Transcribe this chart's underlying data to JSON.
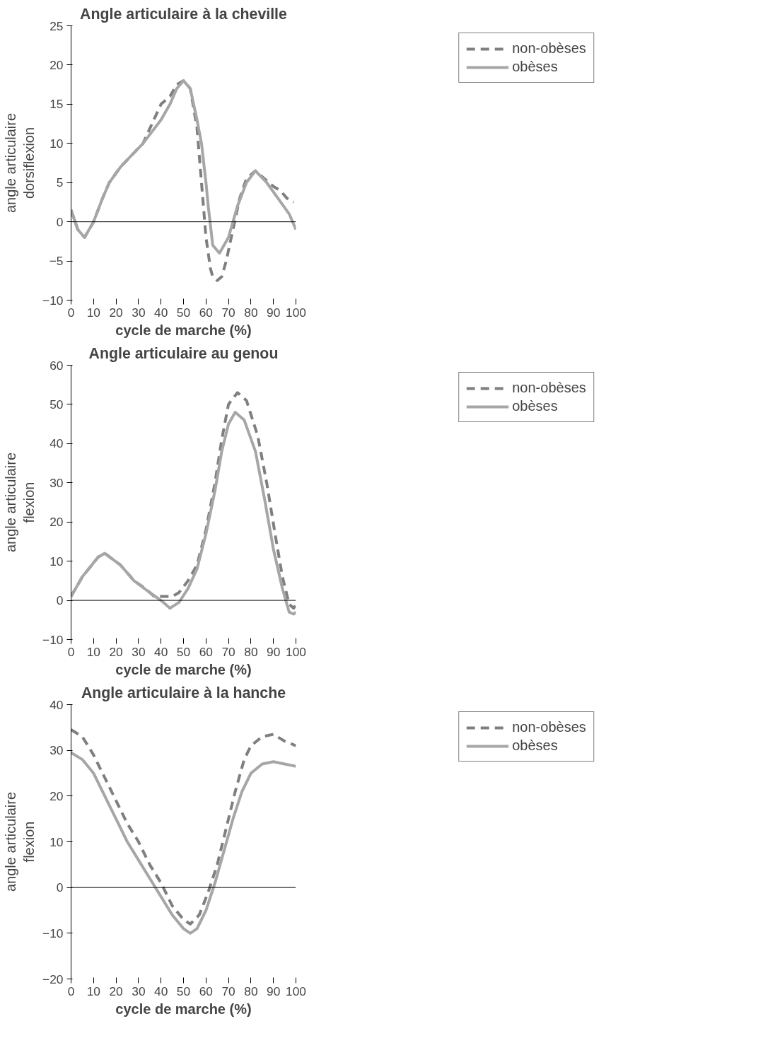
{
  "chart_data": [
    {
      "type": "line",
      "title": "Angle articulaire à la cheville",
      "xlabel": "cycle de marche (%)",
      "ylabel": "angle articulaire\ndorsiflexion",
      "xlim": [
        0,
        100
      ],
      "xticks": [
        0,
        10,
        20,
        30,
        40,
        50,
        60,
        70,
        80,
        90,
        100
      ],
      "ylim": [
        -10,
        25
      ],
      "yticks": [
        -10,
        -5,
        0,
        5,
        10,
        15,
        20,
        25
      ],
      "grid": false,
      "legend": "top right",
      "ref_lines": [
        {
          "axis": "y",
          "value": 0,
          "color": "#000000"
        }
      ],
      "series": [
        {
          "name": "non-obèses",
          "color": "#7f7f7f",
          "line_style": "dashed",
          "x": [
            0,
            3,
            6,
            10,
            14,
            17,
            22,
            27,
            32,
            36,
            40,
            44,
            47,
            50,
            53,
            56,
            58,
            60,
            62,
            63,
            65,
            67,
            69,
            72,
            75,
            78,
            82,
            86,
            90,
            93,
            96,
            99
          ],
          "values": [
            1.5,
            -1,
            -2,
            0,
            3,
            5,
            7,
            8.5,
            10,
            12.5,
            15,
            16,
            17.5,
            18,
            17,
            12,
            5,
            -2,
            -6,
            -7,
            -7.5,
            -7,
            -5,
            -1,
            3,
            5.5,
            6.5,
            5.5,
            4.5,
            4,
            3,
            2.5
          ]
        },
        {
          "name": "obèses",
          "color": "#a6a6a6",
          "line_style": "solid",
          "x": [
            0,
            3,
            6,
            10,
            14,
            17,
            22,
            27,
            32,
            36,
            40,
            44,
            47,
            50,
            53,
            56,
            58,
            60,
            61,
            63,
            66,
            70,
            74,
            78,
            82,
            87,
            92,
            97,
            100
          ],
          "values": [
            1.5,
            -1,
            -2,
            0,
            3,
            5,
            7,
            8.5,
            10,
            11.5,
            13,
            15,
            17,
            18,
            17,
            13,
            10,
            5,
            2,
            -3,
            -4,
            -2,
            2,
            5,
            6.5,
            5,
            3,
            1,
            -1
          ]
        }
      ]
    },
    {
      "type": "line",
      "title": "Angle articulaire au genou",
      "xlabel": "cycle de marche (%)",
      "ylabel": "angle articulaire\nflexion",
      "xlim": [
        0,
        100
      ],
      "xticks": [
        0,
        10,
        20,
        30,
        40,
        50,
        60,
        70,
        80,
        90,
        100
      ],
      "ylim": [
        -10,
        60
      ],
      "yticks": [
        -10,
        0,
        10,
        20,
        30,
        40,
        50,
        60
      ],
      "grid": false,
      "legend": "top right",
      "ref_lines": [
        {
          "axis": "y",
          "value": 0,
          "color": "#000000"
        }
      ],
      "series": [
        {
          "name": "non-obèses",
          "color": "#7f7f7f",
          "line_style": "dashed",
          "x": [
            0,
            5,
            12,
            15,
            22,
            28,
            33,
            37,
            40,
            45,
            48,
            52,
            56,
            60,
            64,
            67,
            70,
            74,
            78,
            83,
            87,
            91,
            94,
            97,
            99,
            100
          ],
          "values": [
            1,
            6,
            11,
            12,
            9,
            5,
            3,
            1,
            1,
            1,
            2,
            5,
            9,
            18,
            30,
            41,
            50,
            53,
            51,
            42,
            30,
            16,
            6,
            -1,
            -2,
            -1
          ]
        },
        {
          "name": "obèses",
          "color": "#a6a6a6",
          "line_style": "solid",
          "x": [
            0,
            5,
            12,
            15,
            22,
            28,
            35,
            40,
            44,
            48,
            52,
            56,
            60,
            64,
            67,
            70,
            73,
            77,
            82,
            86,
            90,
            94,
            97,
            99,
            100
          ],
          "values": [
            1,
            6,
            11,
            12,
            9,
            5,
            2,
            0,
            -2,
            -0.5,
            3,
            8,
            17,
            28,
            38,
            45,
            48,
            46,
            38,
            26,
            13,
            3,
            -3,
            -3.5,
            -3
          ]
        }
      ]
    },
    {
      "type": "line",
      "title": "Angle articulaire à la hanche",
      "xlabel": "cycle de marche (%)",
      "ylabel": "angle articulaire\nflexion",
      "xlim": [
        0,
        100
      ],
      "xticks": [
        0,
        10,
        20,
        30,
        40,
        50,
        60,
        70,
        80,
        90,
        100
      ],
      "ylim": [
        -20,
        40
      ],
      "yticks": [
        -20,
        -10,
        0,
        10,
        20,
        30,
        40
      ],
      "grid": false,
      "legend": "top right",
      "ref_lines": [
        {
          "axis": "y",
          "value": 0,
          "color": "#000000"
        }
      ],
      "series": [
        {
          "name": "non-obèses",
          "color": "#7f7f7f",
          "line_style": "dashed",
          "x": [
            0,
            5,
            10,
            15,
            20,
            25,
            30,
            35,
            40,
            45,
            50,
            53,
            57,
            61,
            65,
            69,
            73,
            77,
            80,
            85,
            90,
            95,
            100
          ],
          "values": [
            34.5,
            33,
            29,
            24,
            19,
            14,
            10,
            5,
            1,
            -4,
            -7,
            -8,
            -6,
            -1,
            5,
            13,
            21,
            28,
            31,
            33,
            33.5,
            32,
            31
          ]
        },
        {
          "name": "obèses",
          "color": "#a6a6a6",
          "line_style": "solid",
          "x": [
            0,
            5,
            10,
            15,
            20,
            25,
            30,
            35,
            40,
            45,
            50,
            53,
            56,
            60,
            64,
            68,
            72,
            76,
            80,
            85,
            90,
            95,
            100
          ],
          "values": [
            29.5,
            28,
            25,
            20,
            15,
            10,
            6,
            2,
            -2,
            -6,
            -9,
            -10,
            -9,
            -5,
            1,
            8,
            15,
            21,
            25,
            27,
            27.5,
            27,
            26.5
          ]
        }
      ]
    }
  ]
}
